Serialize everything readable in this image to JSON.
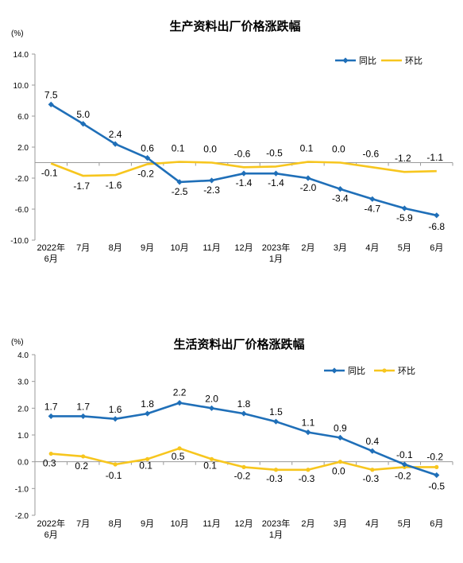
{
  "colors": {
    "yoy": "#1F6FB8",
    "mom": "#F7C61E",
    "axis": "#9a9a9a"
  },
  "chart_data": [
    {
      "type": "line",
      "title": "生产资料出厂价格涨跌幅",
      "unit_label": "(%)",
      "categories": [
        [
          "2022年",
          "6月"
        ],
        [
          "7月"
        ],
        [
          "8月"
        ],
        [
          "9月"
        ],
        [
          "10月"
        ],
        [
          "11月"
        ],
        [
          "12月"
        ],
        [
          "2023年",
          "1月"
        ],
        [
          "2月"
        ],
        [
          "3月"
        ],
        [
          "4月"
        ],
        [
          "5月"
        ],
        [
          "6月"
        ]
      ],
      "ylim": [
        -10,
        14
      ],
      "yticks": [
        "14.0",
        "10.0",
        "6.0",
        "2.0",
        "-2.0",
        "-6.0",
        "-10.0"
      ],
      "legend_position": "top-right",
      "grid": false,
      "series": [
        {
          "name": "同比",
          "color": "#1F6FB8",
          "marker": "diamond",
          "values": [
            7.5,
            5.0,
            2.4,
            0.6,
            -2.5,
            -2.3,
            -1.4,
            -1.4,
            -2.0,
            -3.4,
            -4.7,
            -5.9,
            -6.8
          ],
          "labels": [
            "7.5",
            "5.0",
            "2.4",
            "0.6",
            "-2.5",
            "-2.3",
            "-1.4",
            "-1.4",
            "-2.0",
            "-3.4",
            "-4.7",
            "-5.9",
            "-6.8"
          ]
        },
        {
          "name": "环比",
          "color": "#F7C61E",
          "marker": "none",
          "values": [
            -0.1,
            -1.7,
            -1.6,
            -0.2,
            0.1,
            0.0,
            -0.6,
            -0.5,
            0.1,
            0.0,
            -0.6,
            -1.2,
            -1.1
          ],
          "labels": [
            "-0.1",
            "-1.7",
            "-1.6",
            "-0.2",
            "0.1",
            "0.0",
            "-0.6",
            "-0.5",
            "0.1",
            "0.0",
            "-0.6",
            "-1.2",
            "-1.1"
          ]
        }
      ]
    },
    {
      "type": "line",
      "title": "生活资料出厂价格涨跌幅",
      "unit_label": "(%)",
      "categories": [
        [
          "2022年",
          "6月"
        ],
        [
          "7月"
        ],
        [
          "8月"
        ],
        [
          "9月"
        ],
        [
          "10月"
        ],
        [
          "11月"
        ],
        [
          "12月"
        ],
        [
          "2023年",
          "1月"
        ],
        [
          "2月"
        ],
        [
          "3月"
        ],
        [
          "4月"
        ],
        [
          "5月"
        ],
        [
          "6月"
        ]
      ],
      "ylim": [
        -2,
        4
      ],
      "yticks": [
        "4.0",
        "3.0",
        "2.0",
        "1.0",
        "0.0",
        "-1.0",
        "-2.0"
      ],
      "legend_position": "top-right",
      "grid": false,
      "series": [
        {
          "name": "同比",
          "color": "#1F6FB8",
          "marker": "diamond",
          "values": [
            1.7,
            1.7,
            1.6,
            1.8,
            2.2,
            2.0,
            1.8,
            1.5,
            1.1,
            0.9,
            0.4,
            -0.1,
            -0.5
          ],
          "labels": [
            "1.7",
            "1.7",
            "1.6",
            "1.8",
            "2.2",
            "2.0",
            "1.8",
            "1.5",
            "1.1",
            "0.9",
            "0.4",
            "-0.1",
            "-0.5"
          ]
        },
        {
          "name": "环比",
          "color": "#F7C61E",
          "marker": "circle",
          "values": [
            0.3,
            0.2,
            -0.1,
            0.1,
            0.5,
            0.1,
            -0.2,
            -0.3,
            -0.3,
            0.0,
            -0.3,
            -0.2,
            -0.2
          ],
          "labels": [
            "0.3",
            "0.2",
            "-0.1",
            "0.1",
            "0.5",
            "0.1",
            "-0.2",
            "-0.3",
            "-0.3",
            "0.0",
            "-0.3",
            "-0.2",
            "-0.2"
          ]
        }
      ]
    }
  ]
}
